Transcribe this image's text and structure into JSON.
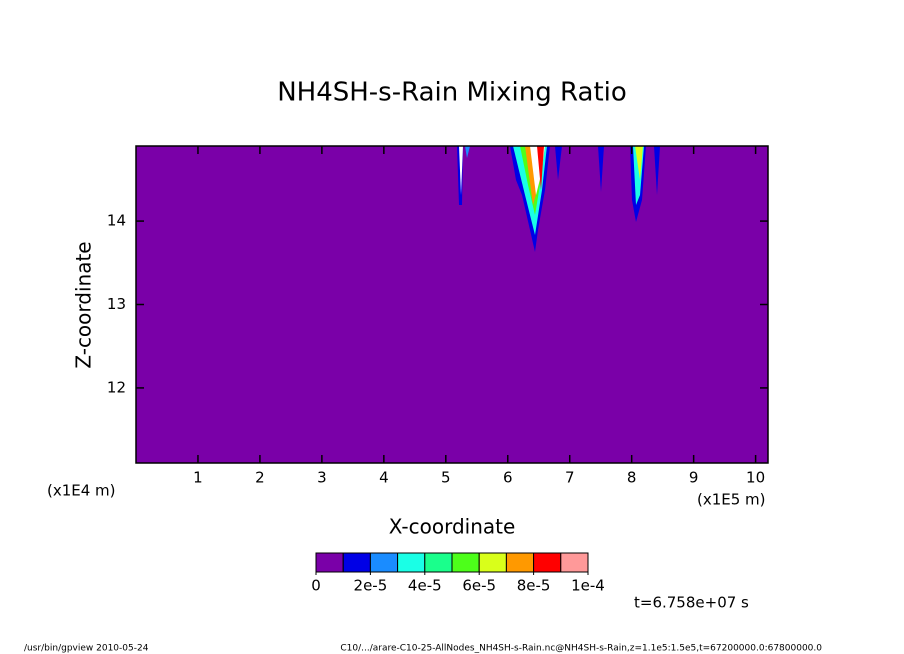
{
  "chart_data": {
    "type": "contour",
    "title": "NH4SH-s-Rain Mixing Ratio",
    "x_label": "X-coordinate",
    "y_label": "Z-coordinate",
    "x_unit_left": "(x1E4 m)",
    "x_unit_right": "(x1E5 m)",
    "xlim": [
      0,
      10.2
    ],
    "xticks": [
      1,
      2,
      3,
      4,
      5,
      6,
      7,
      8,
      9,
      10
    ],
    "ylim": [
      11.1,
      14.9
    ],
    "yticks": [
      12,
      13,
      14
    ],
    "colors": [
      "#7a00a8",
      "#0000e6",
      "#1a8cff",
      "#1affe6",
      "#1aff8c",
      "#4dff1a",
      "#d9ff1a",
      "#ff9900",
      "#ff0000",
      "#ff9999"
    ],
    "colorbar_lim": [
      0,
      0.0001
    ],
    "colorbar_ticks": [
      0,
      {
        "value": 2e-05,
        "label": "2e-5"
      },
      {
        "value": 4e-05,
        "label": "4e-5"
      },
      {
        "value": 6e-05,
        "label": "6e-5"
      },
      {
        "value": 8e-05,
        "label": "8e-5"
      },
      {
        "value": 0.0001,
        "label": "1e-4"
      }
    ],
    "time_label": "t=6.758e+07 s",
    "footer_left": "/usr/bin/gpview  2010-05-24",
    "footer_right": "C10/.../arare-C10-25-AllNodes_NH4SH-s-Rain.nc@NH4SH-s-Rain,z=1.1e5:1.5e5,t=67200000.0:67800000.0"
  }
}
